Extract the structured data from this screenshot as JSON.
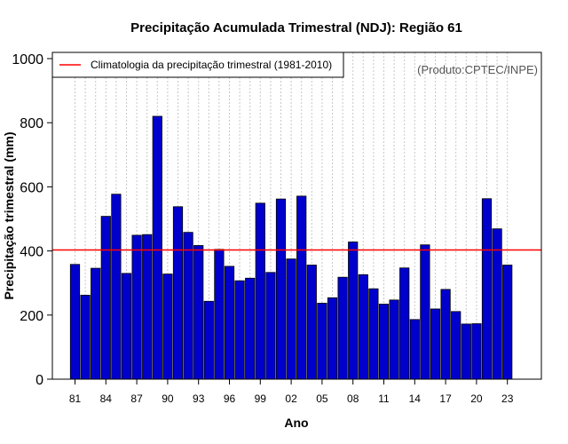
{
  "chart_data": {
    "type": "bar",
    "title": "Precipitação Acumulada Trimestral (NDJ): Região 61",
    "xlabel": "Ano",
    "ylabel": "Precipitação trimestral (mm)",
    "ylim": [
      0,
      1000
    ],
    "yticks": [
      0,
      200,
      400,
      600,
      800,
      1000
    ],
    "xtick_labels": [
      "81",
      "84",
      "87",
      "90",
      "93",
      "96",
      "99",
      "02",
      "05",
      "08",
      "11",
      "14",
      "17",
      "20",
      "23"
    ],
    "categories": [
      "1981",
      "1982",
      "1983",
      "1984",
      "1985",
      "1986",
      "1987",
      "1988",
      "1989",
      "1990",
      "1991",
      "1992",
      "1993",
      "1994",
      "1995",
      "1996",
      "1997",
      "1998",
      "1999",
      "2000",
      "2001",
      "2002",
      "2003",
      "2004",
      "2005",
      "2006",
      "2007",
      "2008",
      "2009",
      "2010",
      "2011",
      "2012",
      "2013",
      "2014",
      "2015",
      "2016",
      "2017",
      "2018",
      "2019",
      "2020",
      "2021",
      "2022",
      "2023"
    ],
    "values": [
      358,
      262,
      346,
      508,
      577,
      330,
      449,
      451,
      820,
      328,
      538,
      458,
      417,
      243,
      405,
      352,
      307,
      315,
      549,
      333,
      562,
      375,
      571,
      356,
      237,
      254,
      318,
      428,
      326,
      282,
      234,
      247,
      347,
      186,
      419,
      219,
      280,
      211,
      172,
      173,
      563,
      469,
      356
    ],
    "climatology": 403,
    "legend": {
      "label": "Climatologia da precipitação trimestral (1981-2010)",
      "position": "top-left"
    },
    "annotation": "(Produto:CPTEC/INPE)",
    "grid": "vertical dotted",
    "colors": {
      "bar_fill": "#0000cc",
      "bar_stroke": "#000000",
      "climatology_line": "#ff0000",
      "grid": "#c8c8c8"
    }
  }
}
